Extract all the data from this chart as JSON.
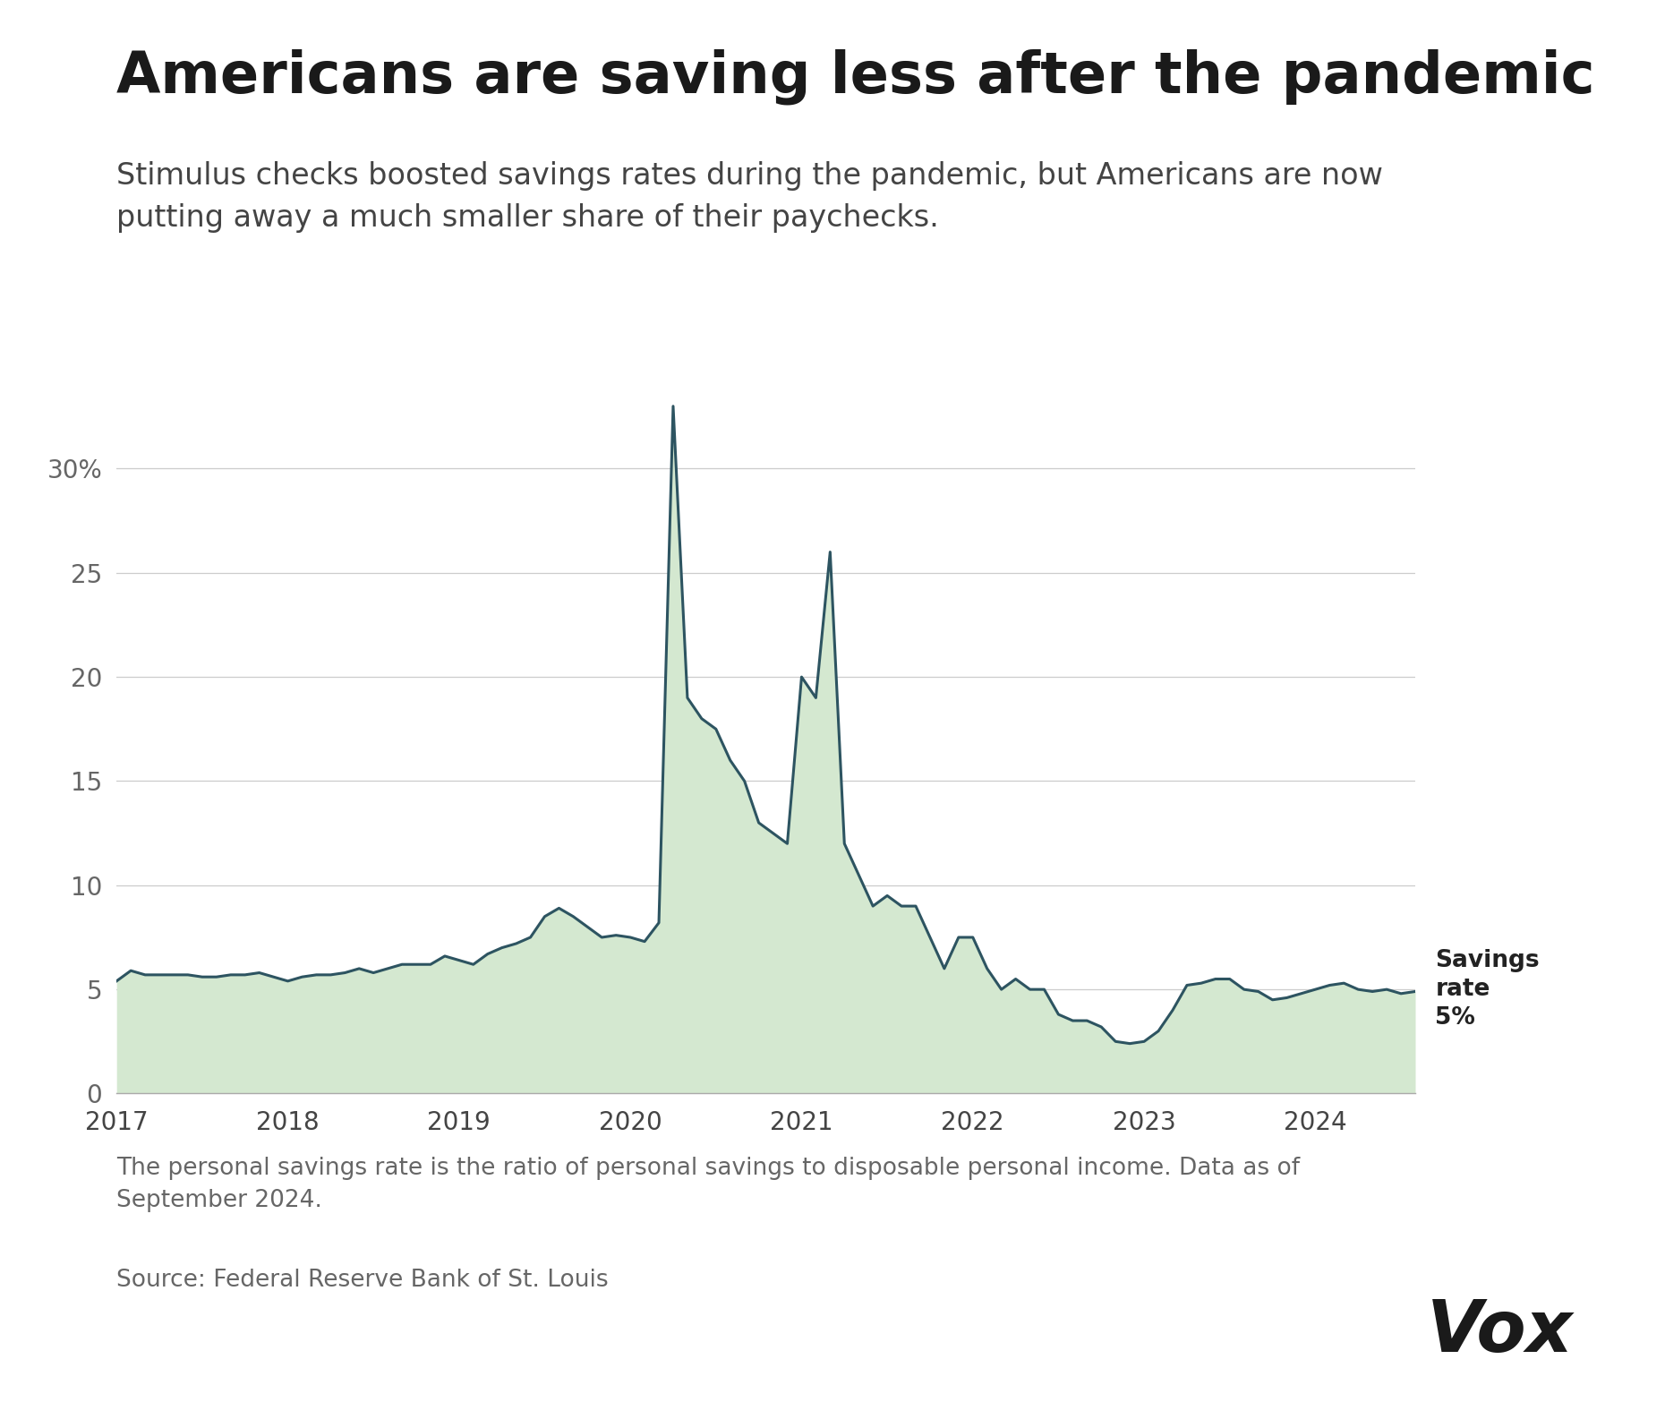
{
  "title": "Americans are saving less after the pandemic",
  "subtitle": "Stimulus checks boosted savings rates during the pandemic, but Americans are now\nputting away a much smaller share of their paychecks.",
  "footnote": "The personal savings rate is the ratio of personal savings to disposable personal income. Data as of\nSeptember 2024.",
  "source": "Source: Federal Reserve Bank of St. Louis",
  "vox_label": "Vox",
  "annotation_label": "Savings\nrate\n5%",
  "line_color": "#2d5461",
  "fill_color": "#d4e8d0",
  "fill_alpha": 1.0,
  "background_color": "#ffffff",
  "title_color": "#1a1a1a",
  "subtitle_color": "#444444",
  "footnote_color": "#666666",
  "annotation_color": "#222222",
  "ylim": [
    0,
    35
  ],
  "yticks": [
    0,
    5,
    10,
    15,
    20,
    25,
    30
  ],
  "ytick_labels": [
    "0",
    "5",
    "10",
    "15",
    "20",
    "25",
    "30%"
  ],
  "values": [
    5.4,
    5.9,
    5.7,
    5.7,
    5.7,
    5.7,
    5.6,
    5.6,
    5.7,
    5.7,
    5.8,
    5.6,
    5.4,
    5.6,
    5.7,
    5.7,
    5.8,
    6.0,
    5.8,
    6.0,
    6.2,
    6.2,
    6.2,
    6.6,
    6.4,
    6.2,
    6.7,
    7.0,
    7.2,
    7.5,
    8.5,
    8.9,
    8.5,
    8.0,
    7.5,
    7.6,
    7.5,
    7.3,
    8.2,
    33.0,
    19.0,
    18.0,
    17.5,
    16.0,
    15.0,
    13.0,
    12.5,
    12.0,
    20.0,
    19.0,
    26.0,
    12.0,
    10.5,
    9.0,
    9.5,
    9.0,
    9.0,
    7.5,
    6.0,
    7.5,
    7.5,
    6.0,
    5.0,
    5.5,
    5.0,
    5.0,
    3.8,
    3.5,
    3.5,
    3.2,
    2.5,
    2.4,
    2.5,
    3.0,
    4.0,
    5.2,
    5.3,
    5.5,
    5.5,
    5.0,
    4.9,
    4.5,
    4.6,
    4.8,
    5.0,
    5.2,
    5.3,
    5.0,
    4.9,
    5.0,
    4.8,
    4.9
  ],
  "xtick_positions": [
    0,
    12,
    24,
    36,
    48,
    60,
    72,
    84
  ],
  "xtick_labels": [
    "2017",
    "2018",
    "2019",
    "2020",
    "2021",
    "2022",
    "2023",
    "2024"
  ]
}
